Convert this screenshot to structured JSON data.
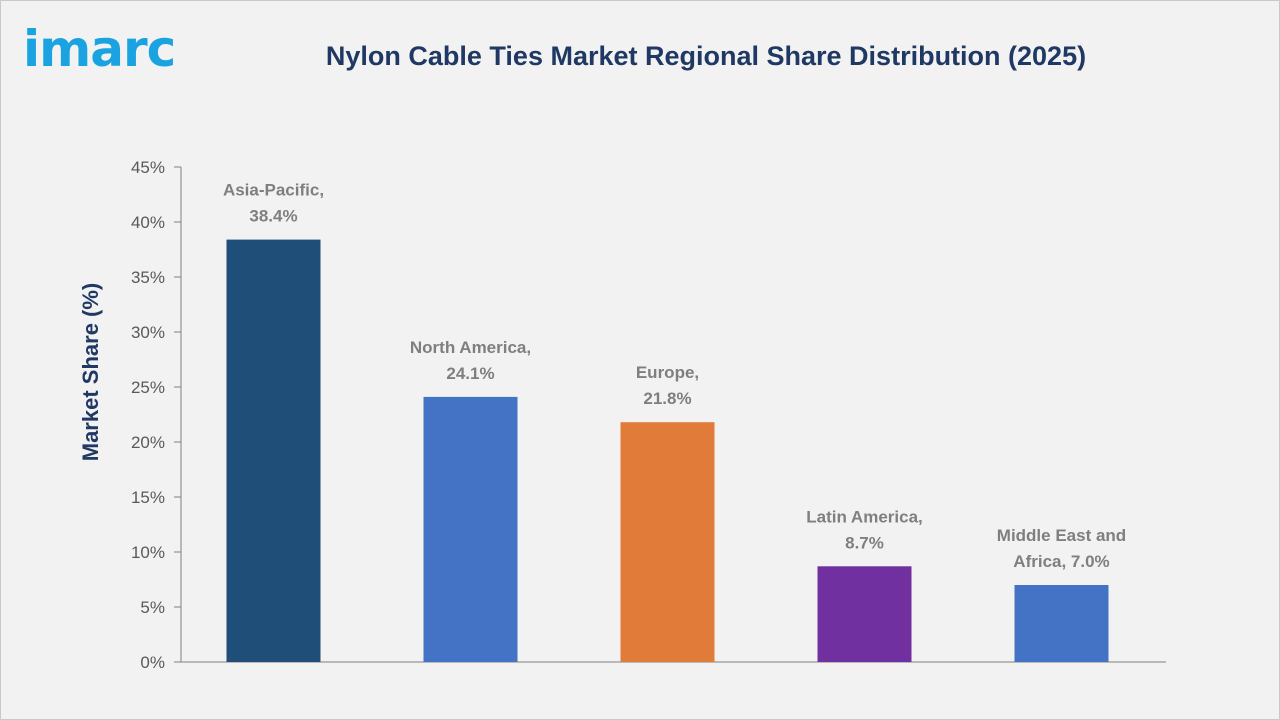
{
  "header": {
    "logo_text": "imarc",
    "title": "Nylon Cable Ties Market Regional Share Distribution (2025)"
  },
  "colors": {
    "title": "#1f3864",
    "logo": "#1aa3e0",
    "axis": "#808080",
    "label": "#7f7f7f"
  },
  "chart_data": {
    "type": "bar",
    "title": "Nylon Cable Ties Market Regional Share Distribution (2025)",
    "xlabel": "",
    "ylabel": "Market Share (%)",
    "ylim": [
      0,
      45
    ],
    "yticks": [
      0,
      5,
      10,
      15,
      20,
      25,
      30,
      35,
      40,
      45
    ],
    "ytick_labels": [
      "0%",
      "5%",
      "10%",
      "15%",
      "20%",
      "25%",
      "30%",
      "35%",
      "40%",
      "45%"
    ],
    "grid": false,
    "legend": "none",
    "categories": [
      "Asia-Pacific",
      "North America",
      "Europe",
      "Latin America",
      "Middle East and Africa"
    ],
    "values": [
      38.4,
      24.1,
      21.8,
      8.7,
      7.0
    ],
    "data_labels": [
      [
        "Asia-Pacific,",
        "38.4%"
      ],
      [
        "North America,",
        "24.1%"
      ],
      [
        "Europe,",
        "21.8%"
      ],
      [
        "Latin America,",
        "8.7%"
      ],
      [
        "Middle East and",
        "Africa, 7.0%"
      ]
    ],
    "bar_colors": [
      "#1f4e79",
      "#4472c4",
      "#e07b39",
      "#7030a0",
      "#4472c4"
    ]
  }
}
